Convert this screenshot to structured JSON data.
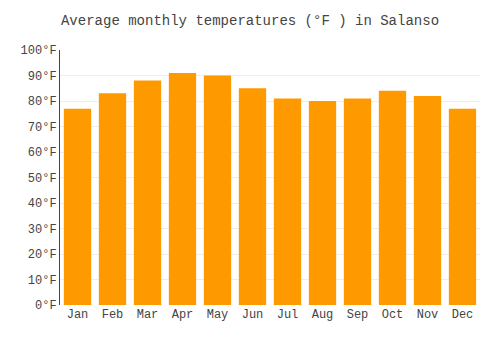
{
  "chart_data": {
    "type": "bar",
    "title": "Average monthly temperatures (°F ) in Salanso",
    "categories": [
      "Jan",
      "Feb",
      "Mar",
      "Apr",
      "May",
      "Jun",
      "Jul",
      "Aug",
      "Sep",
      "Oct",
      "Nov",
      "Dec"
    ],
    "values": [
      77,
      83,
      88,
      91,
      90,
      85,
      81,
      80,
      81,
      84,
      82,
      77
    ],
    "color": "#FF9900",
    "ylim": [
      0,
      100
    ],
    "yticks": [
      {
        "value": 0,
        "label": "0°F"
      },
      {
        "value": 10,
        "label": "10°F"
      },
      {
        "value": 20,
        "label": "20°F"
      },
      {
        "value": 30,
        "label": "30°F"
      },
      {
        "value": 40,
        "label": "40°F"
      },
      {
        "value": 50,
        "label": "50°F"
      },
      {
        "value": 60,
        "label": "60°F"
      },
      {
        "value": 70,
        "label": "70°F"
      },
      {
        "value": 80,
        "label": "80°F"
      },
      {
        "value": 90,
        "label": "90°F"
      },
      {
        "value": 100,
        "label": "100°F"
      }
    ],
    "grid": true
  }
}
